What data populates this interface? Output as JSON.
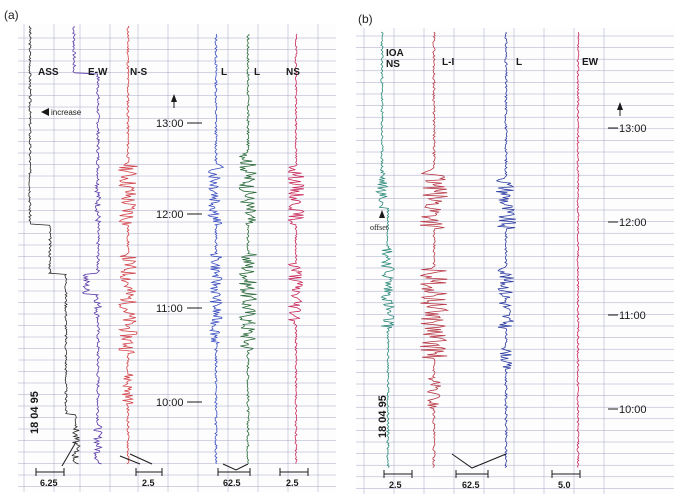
{
  "panel_a": {
    "label": "(a)",
    "column_labels": [
      "ASS",
      "E-W",
      "N-S",
      "L",
      "L",
      "NS"
    ],
    "annotation": "increase",
    "times": [
      "13:00",
      "12:00",
      "11:00",
      "10:00"
    ],
    "date": "18 04 95",
    "scales": [
      "6.25",
      "2.5",
      "62.5",
      "2.5"
    ]
  },
  "panel_b": {
    "label": "(b)",
    "column_labels": [
      "IOA",
      "NS",
      "L-I",
      "L",
      "EW"
    ],
    "annotation": "offset",
    "times": [
      "13:00",
      "12:00",
      "11:00",
      "10:00"
    ],
    "date": "18 04 95",
    "scales": [
      "2.5",
      "62.5",
      "5.0"
    ]
  },
  "colors": {
    "grid": "#a6a6c6",
    "black": "#2a2a2a",
    "purple": "#5a3aa8",
    "red": "#d2424a",
    "blue": "#3a4ec0",
    "green": "#2a6a3a",
    "magenta": "#c8285a",
    "teal": "#2a8a7a",
    "darkred": "#b83a48",
    "navy": "#2a3aa0"
  }
}
